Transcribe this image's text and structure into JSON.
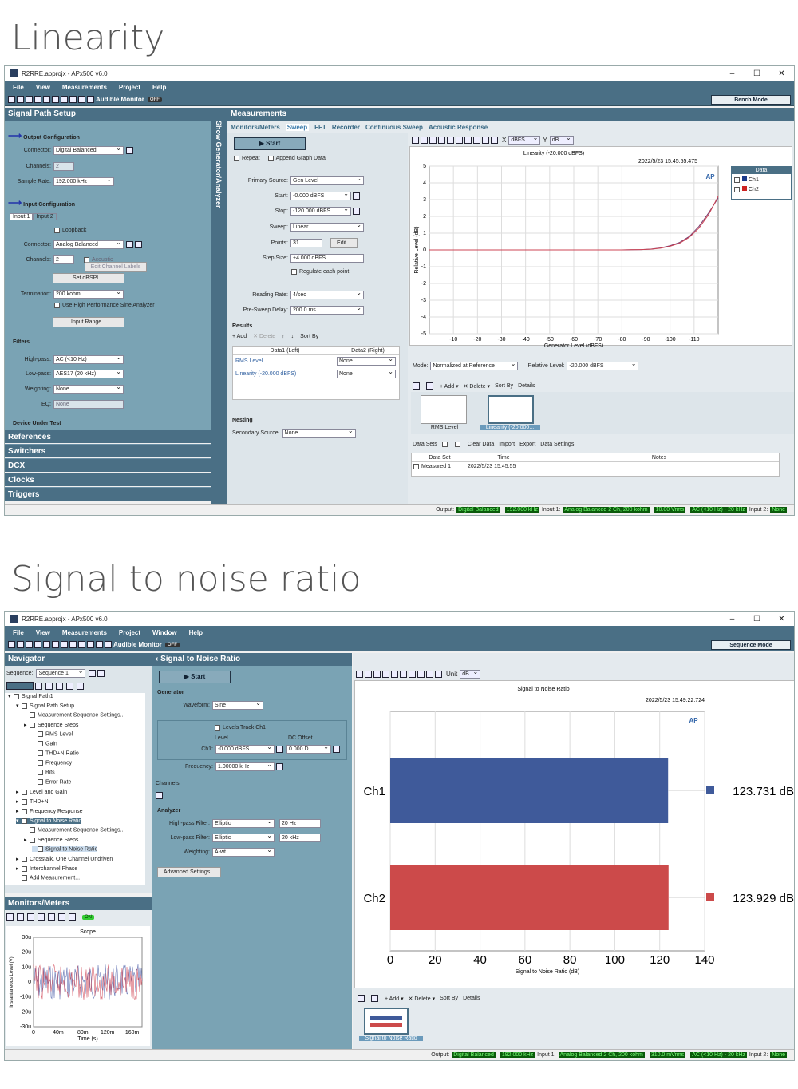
{
  "headings": {
    "linearity": "Linearity",
    "snr": "Signal to noise ratio"
  },
  "win1": {
    "title": "R2RRE.approjx - APx500 v6.0",
    "wbtns": [
      "–",
      "☐",
      "✕"
    ],
    "menu": [
      "File",
      "View",
      "Measurements",
      "Project",
      "Help"
    ],
    "audible_monitor": "Audible Monitor",
    "audible_state": "OFF",
    "mode": "Bench Mode",
    "sps": {
      "title": "Signal Path Setup",
      "output_config": "Output Configuration",
      "connector_label": "Connector:",
      "connector": "Digital Balanced",
      "channels_label": "Channels:",
      "channels": "2",
      "sample_rate_label": "Sample Rate:",
      "sample_rate": "192.000 kHz",
      "input_config": "Input Configuration",
      "input_tabs": [
        "Input 1",
        "Input 2"
      ],
      "loopback": "Loopback",
      "in_connector": "Analog Balanced",
      "in_channels": "2",
      "acoustic": "Acoustic",
      "edit_labels": "Edit Channel Labels",
      "set_dbspl": "Set dBSPL...",
      "termination_label": "Termination:",
      "termination": "200 kohm",
      "high_perf": "Use High Performance Sine Analyzer",
      "input_range": "Input Range...",
      "filters": "Filters",
      "hp_label": "High-pass:",
      "hp": "AC (<10 Hz)",
      "lp_label": "Low-pass:",
      "lp": "AES17 (20 kHz)",
      "weighting_label": "Weighting:",
      "weighting": "None",
      "eq_label": "EQ:",
      "eq": "None",
      "dut": "Device Under Test"
    },
    "vertical_label": "Show Generator/Analyzer",
    "nav_links": [
      "References",
      "Switchers",
      "DCX",
      "Clocks",
      "Triggers"
    ],
    "meas": {
      "title": "Measurements",
      "tabs": [
        "Monitors/Meters",
        "Sweep",
        "FFT",
        "Recorder",
        "Continuous Sweep",
        "Acoustic Response"
      ],
      "start": "Start",
      "repeat": "Repeat",
      "append": "Append Graph Data",
      "primary_label": "Primary Source:",
      "primary": "Gen Level",
      "start_label": "Start:",
      "start_val": "-0.000 dBFS",
      "stop_label": "Stop:",
      "stop_val": "-120.000 dBFS",
      "sweep_label": "Sweep:",
      "sweep": "Linear",
      "points_label": "Points:",
      "points": "31",
      "edit": "Edit...",
      "step_label": "Step Size:",
      "step": "+4.000 dBFS",
      "regulate": "Regulate each point",
      "reading_label": "Reading Rate:",
      "reading": "4/sec",
      "presweep_label": "Pre-Sweep Delay:",
      "presweep": "200.0 ms",
      "results": "Results",
      "add": "Add",
      "delete": "Delete",
      "sortby": "Sort By",
      "col1": "Data1 (Left)",
      "col2": "Data2 (Right)",
      "rows": [
        {
          "a": "RMS Level",
          "b": "None"
        },
        {
          "a": "Linearity (-20.000 dBFS)",
          "b": "None"
        }
      ],
      "nesting": "Nesting",
      "secondary_label": "Secondary Source:",
      "secondary": "None"
    },
    "graph": {
      "x_label": "X",
      "x_unit": "dBFS",
      "y_label": "Y",
      "y_unit": "dB",
      "mode_label": "Mode:",
      "mode": "Normalized at Reference",
      "rel_label": "Relative Level:",
      "rel": "-20.000 dBFS",
      "legend_title": "Data",
      "legend": [
        "Ch1",
        "Ch2"
      ],
      "legend_colors": [
        "#1a3a8a",
        "#cc2222"
      ],
      "details": "Details",
      "thumbs": [
        "RMS Level",
        "Linearity (-20.000..."
      ]
    },
    "datasets": {
      "label": "Data Sets",
      "clear": "Clear Data",
      "import": "Import",
      "export": "Export",
      "settings": "Data Settings",
      "cols": [
        "Data Set",
        "Time",
        "Notes"
      ],
      "row": {
        "name": "Measured 1",
        "time": "2022/5/23 15:45:55"
      }
    },
    "status": {
      "output": "Output:",
      "out_conn": "Digital Balanced",
      "out_rate": "192.000 kHz",
      "in1": "Input 1:",
      "in_conn": "Analog Balanced 2 Ch, 200 kohm",
      "in_level": "10.00 Vrms",
      "in_filt": "AC (<10 Hz) - 20 kHz",
      "in2": "Input 2:",
      "in2v": "None"
    }
  },
  "win2": {
    "title": "R2RRE.approjx - APx500 v6.0",
    "menu": [
      "File",
      "View",
      "Measurements",
      "Project",
      "Window",
      "Help"
    ],
    "audible_monitor": "Audible Monitor",
    "audible_state": "OFF",
    "mode": "Sequence Mode",
    "navigator": {
      "title": "Navigator",
      "seq_label": "Sequence:",
      "seq": "Sequence 1",
      "items": [
        {
          "t": "Signal Path1",
          "d": 0,
          "ex": "▾"
        },
        {
          "t": "Signal Path Setup",
          "d": 1,
          "ex": "▾"
        },
        {
          "t": "Measurement Sequence Settings...",
          "d": 2,
          "ex": ""
        },
        {
          "t": "Sequence Steps",
          "d": 2,
          "ex": "▸"
        },
        {
          "t": "RMS Level",
          "d": 3,
          "ex": ""
        },
        {
          "t": "Gain",
          "d": 3,
          "ex": ""
        },
        {
          "t": "THD+N Ratio",
          "d": 3,
          "ex": ""
        },
        {
          "t": "Frequency",
          "d": 3,
          "ex": ""
        },
        {
          "t": "Bits",
          "d": 3,
          "ex": ""
        },
        {
          "t": "Error Rate",
          "d": 3,
          "ex": ""
        },
        {
          "t": "Level and Gain",
          "d": 1,
          "ex": "▸"
        },
        {
          "t": "THD+N",
          "d": 1,
          "ex": "▸"
        },
        {
          "t": "Frequency Response",
          "d": 1,
          "ex": "▸"
        },
        {
          "t": "Signal to Noise Ratio",
          "d": 1,
          "ex": "▾",
          "sel": true
        },
        {
          "t": "Measurement Sequence Settings...",
          "d": 2,
          "ex": ""
        },
        {
          "t": "Sequence Steps",
          "d": 2,
          "ex": "▸"
        },
        {
          "t": "Signal to Noise Ratio",
          "d": 3,
          "ex": "",
          "sel2": true
        },
        {
          "t": "Crosstalk, One Channel Undriven",
          "d": 1,
          "ex": "▸"
        },
        {
          "t": "Interchannel Phase",
          "d": 1,
          "ex": "▸"
        },
        {
          "t": "Add Measurement...",
          "d": 1,
          "ex": ""
        }
      ]
    },
    "monitors": {
      "title": "Monitors/Meters",
      "state": "ON",
      "scope": "Scope",
      "ylabel": "Instantaneous Level (V)",
      "xlabel": "Time (s)",
      "yticks": [
        "30u",
        "20u",
        "10u",
        "0",
        "-10u",
        "-20u",
        "-30u"
      ],
      "xticks": [
        "0",
        "40m",
        "80m",
        "120m",
        "160m"
      ]
    },
    "snr": {
      "title": "Signal to Noise Ratio",
      "start": "Start",
      "generator": "Generator",
      "waveform_label": "Waveform:",
      "waveform": "Sine",
      "levels_track": "Levels Track Ch1",
      "level_label": "Level",
      "dc_label": "DC Offset",
      "ch1_label": "Ch1:",
      "level": "-0.000 dBFS",
      "dc": "0.000 D",
      "freq_label": "Frequency:",
      "freq": "1.00000 kHz",
      "channels_label": "Channels:",
      "analyzer": "Analyzer",
      "hp_label": "High-pass Filter:",
      "hp": "Elliptic",
      "hp_val": "20 Hz",
      "lp_label": "Low-pass Filter:",
      "lp": "Elliptic",
      "lp_val": "20 kHz",
      "weighting_label": "Weighting:",
      "weighting": "A-wt.",
      "advanced": "Advanced Settings..."
    },
    "graph": {
      "unit_label": "Unit",
      "unit": "dB",
      "details": "Details",
      "add": "Add",
      "delete": "Delete",
      "sortby": "Sort By",
      "thumb": "Signal to Noise Ratio"
    },
    "status": {
      "output": "Output:",
      "out_conn": "Digital Balanced",
      "out_rate": "192.000 kHz",
      "in1": "Input 1:",
      "in_conn": "Analog Balanced 2 Ch, 200 kohm",
      "in_level": "310.0 mVrms",
      "in_filt": "AC (<10 Hz) - 20 kHz",
      "in2": "Input 2:",
      "in2v": "None"
    }
  },
  "chart_data": [
    {
      "type": "line",
      "title": "Linearity (-20.000 dBFS)",
      "timestamp": "2022/5/23 15:45:55.475",
      "xlabel": "Generator Level (dBFS)",
      "ylabel": "Relative Level (dB)",
      "xlim": [
        0,
        -120
      ],
      "ylim": [
        -5,
        5
      ],
      "xticks": [
        -110,
        -100,
        -90,
        -80,
        -70,
        -60,
        -50,
        -40,
        -30,
        -20,
        -10
      ],
      "yticks": [
        5,
        4,
        3,
        2,
        1,
        0,
        -1,
        -2,
        -3,
        -4,
        -5
      ],
      "x": [
        0,
        -4,
        -8,
        -12,
        -16,
        -20,
        -24,
        -28,
        -32,
        -36,
        -40,
        -44,
        -48,
        -52,
        -56,
        -60,
        -64,
        -68,
        -72,
        -76,
        -80,
        -84,
        -88,
        -92,
        -96,
        -100,
        -104,
        -108,
        -112,
        -116,
        -120
      ],
      "series": [
        {
          "name": "Ch1",
          "color": "#7a3a6a",
          "values": [
            0,
            0,
            0,
            0,
            0,
            0,
            0,
            0,
            0,
            0,
            0,
            0,
            0,
            0,
            0,
            0,
            0,
            0,
            0,
            0,
            0,
            0.01,
            0.02,
            0.05,
            0.12,
            0.25,
            0.45,
            0.8,
            1.4,
            2.2,
            3.1
          ]
        },
        {
          "name": "Ch2",
          "color": "#cc4455",
          "values": [
            0,
            0,
            0,
            0,
            0,
            0,
            0,
            0,
            0,
            0,
            0,
            0,
            0,
            0,
            0,
            0,
            0,
            0,
            0,
            0,
            0,
            0.01,
            0.02,
            0.04,
            0.1,
            0.22,
            0.4,
            0.75,
            1.3,
            2.1,
            3.2
          ]
        }
      ]
    },
    {
      "type": "bar",
      "title": "Signal to Noise Ratio",
      "timestamp": "2022/5/23 15:49:22.724",
      "xlabel": "Signal to Noise Ratio (dB)",
      "xlim": [
        0,
        140
      ],
      "xticks": [
        0,
        20,
        40,
        60,
        80,
        100,
        120,
        140
      ],
      "categories": [
        "Ch1",
        "Ch2"
      ],
      "values": [
        123.731,
        123.929
      ],
      "value_labels": [
        "123.731 dB",
        "123.929 dB"
      ],
      "colors": [
        "#3f5a9a",
        "#cc4a4a"
      ]
    }
  ]
}
